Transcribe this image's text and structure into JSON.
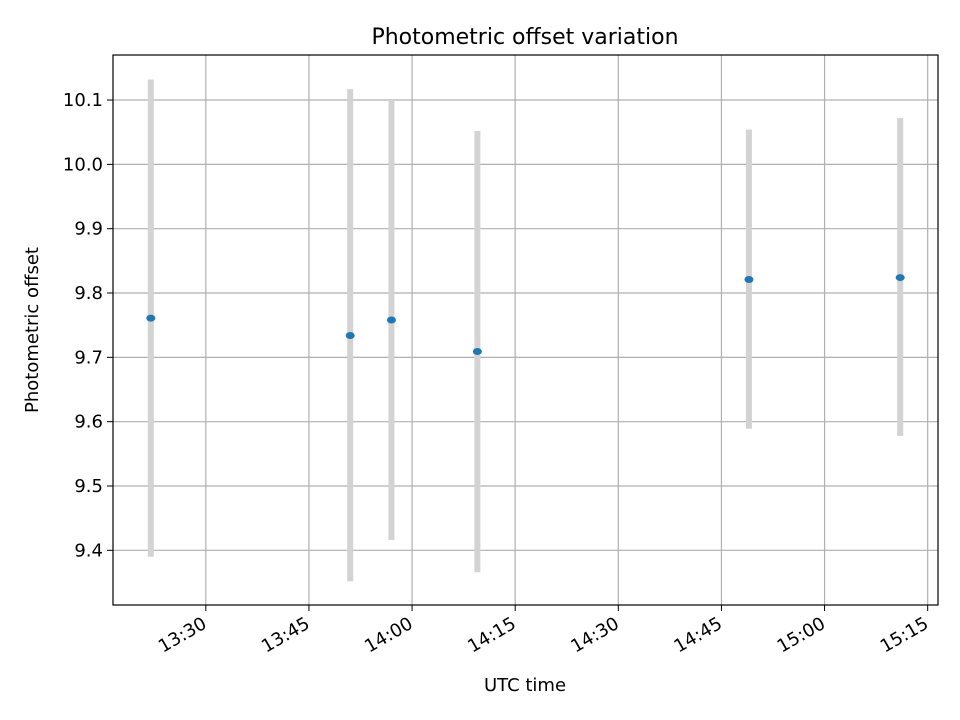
{
  "chart_data": {
    "type": "scatter",
    "title": "Photometric offset variation",
    "xlabel": "UTC time",
    "ylabel": "Photometric offset",
    "x_ticks": [
      "13:30",
      "13:45",
      "14:00",
      "14:15",
      "14:30",
      "14:45",
      "15:00",
      "15:15"
    ],
    "y_ticks": [
      "9.4",
      "9.5",
      "9.6",
      "9.7",
      "9.8",
      "9.9",
      "10.0",
      "10.1"
    ],
    "xlim": [
      "13:16:30",
      "15:16:30"
    ],
    "ylim": [
      9.315,
      10.17
    ],
    "grid": true,
    "series": [
      {
        "x": [
          "13:22:00",
          "13:51:00",
          "13:57:00",
          "14:09:30",
          "14:49:00",
          "15:11:00"
        ],
        "y": [
          9.761,
          9.734,
          9.758,
          9.709,
          9.821,
          9.824
        ],
        "error_low": [
          9.39,
          9.352,
          9.416,
          9.366,
          9.589,
          9.578
        ],
        "error_high": [
          10.132,
          10.117,
          10.1,
          10.052,
          10.054,
          10.072
        ]
      }
    ],
    "point_color": "#1f77b4",
    "errorbar_color": "#d3d3d3"
  }
}
